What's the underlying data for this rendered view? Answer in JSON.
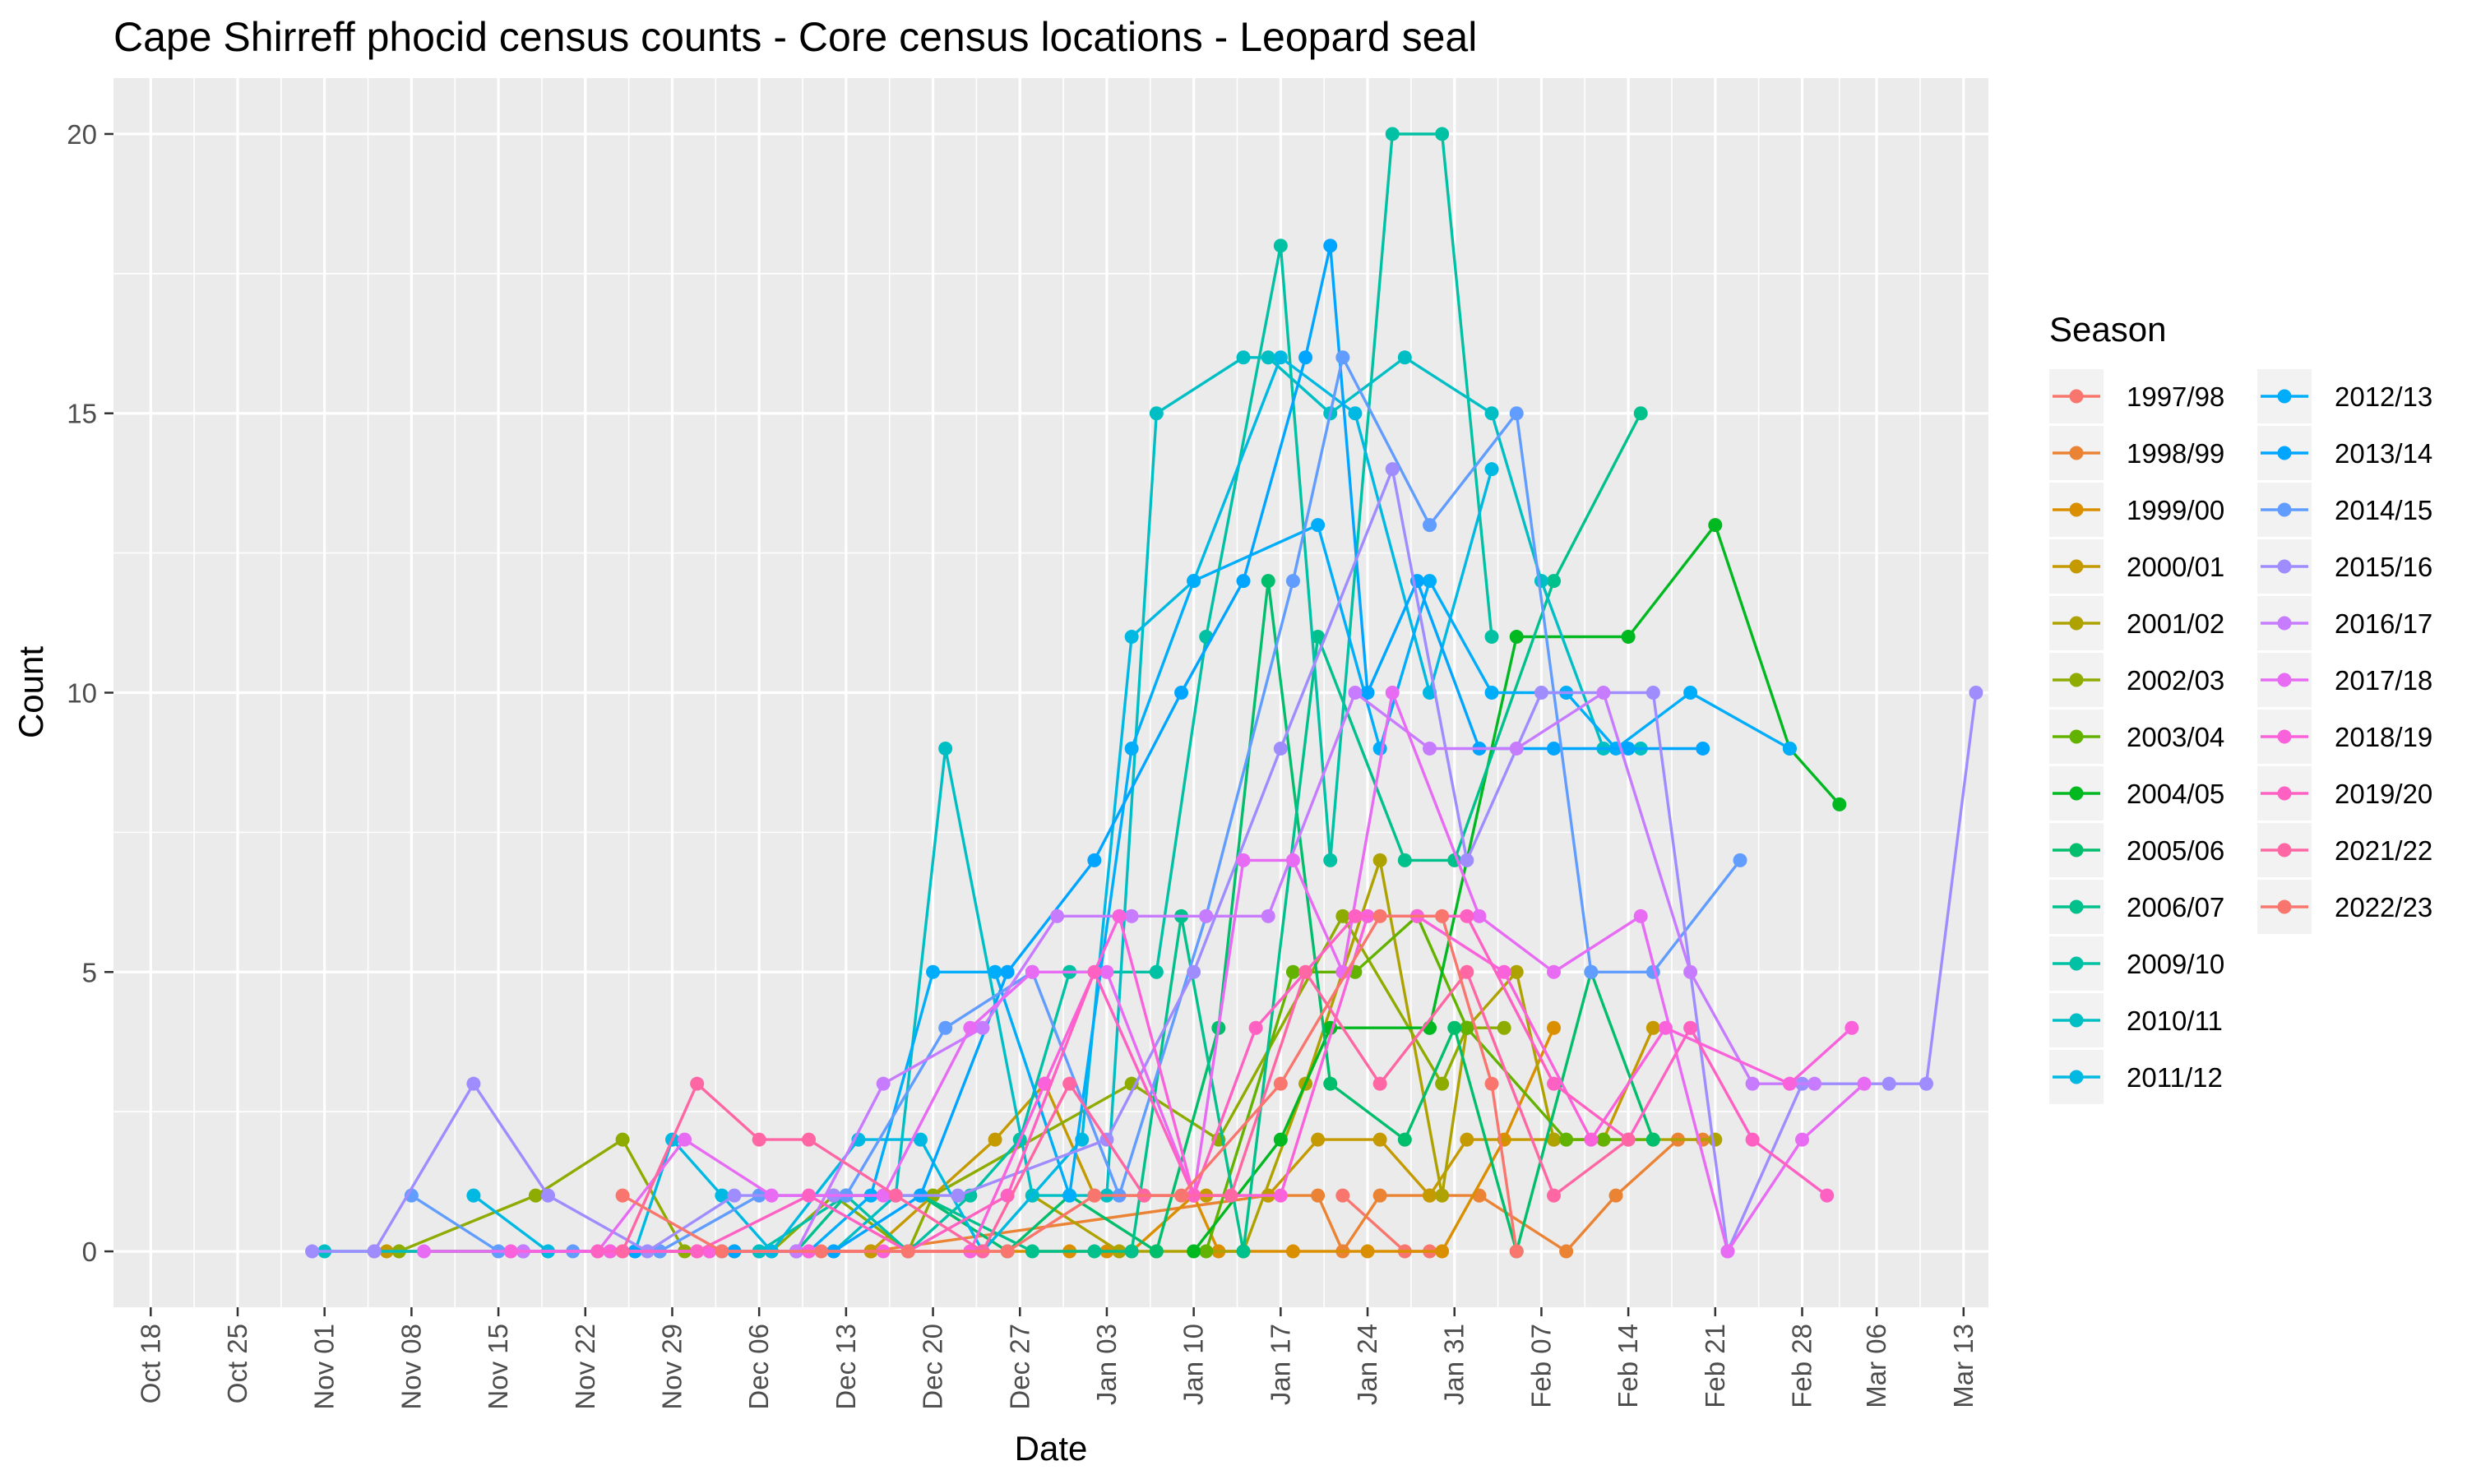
{
  "chart_data": {
    "type": "line",
    "title": "Cape Shirreff phocid census counts - Core census locations - Leopard seal",
    "xlabel": "Date",
    "ylabel": "Count",
    "legend_title": "Season",
    "legend_position": "right",
    "grid": true,
    "xlim_days": [
      -3,
      148
    ],
    "ylim": [
      -1,
      21
    ],
    "x_ticks": [
      {
        "label": "Oct 18",
        "day": 0
      },
      {
        "label": "Oct 25",
        "day": 7
      },
      {
        "label": "Nov 01",
        "day": 14
      },
      {
        "label": "Nov 08",
        "day": 21
      },
      {
        "label": "Nov 15",
        "day": 28
      },
      {
        "label": "Nov 22",
        "day": 35
      },
      {
        "label": "Nov 29",
        "day": 42
      },
      {
        "label": "Dec 06",
        "day": 49
      },
      {
        "label": "Dec 13",
        "day": 56
      },
      {
        "label": "Dec 20",
        "day": 63
      },
      {
        "label": "Dec 27",
        "day": 70
      },
      {
        "label": "Jan 03",
        "day": 77
      },
      {
        "label": "Jan 10",
        "day": 84
      },
      {
        "label": "Jan 17",
        "day": 91
      },
      {
        "label": "Jan 24",
        "day": 98
      },
      {
        "label": "Jan 31",
        "day": 105
      },
      {
        "label": "Feb 07",
        "day": 112
      },
      {
        "label": "Feb 14",
        "day": 119
      },
      {
        "label": "Feb 21",
        "day": 126
      },
      {
        "label": "Feb 28",
        "day": 133
      },
      {
        "label": "Mar 06",
        "day": 139
      },
      {
        "label": "Mar 13",
        "day": 146
      }
    ],
    "y_ticks": [
      0,
      5,
      10,
      15,
      20
    ],
    "series": [
      {
        "name": "1997/98",
        "color": "#F8766D",
        "x": [
          96,
          101,
          103
        ],
        "values": [
          1,
          0,
          0
        ]
      },
      {
        "name": "1998/99",
        "color": "#EB8335",
        "x": [
          44,
          58,
          90,
          94,
          96,
          99,
          103,
          107,
          114,
          118,
          123,
          125
        ],
        "values": [
          0,
          0,
          1,
          1,
          0,
          1,
          1,
          1,
          0,
          1,
          2,
          2
        ]
      },
      {
        "name": "1999/00",
        "color": "#DA8F00",
        "x": [
          18,
          58,
          74,
          77,
          79,
          84,
          86,
          92,
          98,
          104,
          109,
          113
        ],
        "values": [
          0,
          0,
          0,
          0,
          0,
          1,
          0,
          0,
          0,
          0,
          2,
          4
        ]
      },
      {
        "name": "2000/01",
        "color": "#C49A00",
        "x": [
          19,
          58,
          68,
          72,
          76,
          80,
          85,
          90,
          94,
          99,
          103,
          106,
          113,
          117,
          121
        ],
        "values": [
          0,
          0,
          2,
          3,
          1,
          1,
          1,
          1,
          2,
          2,
          1,
          2,
          2,
          2,
          4
        ]
      },
      {
        "name": "2001/02",
        "color": "#AEA200",
        "x": [
          71,
          78,
          81,
          88,
          93,
          99,
          104,
          106,
          110,
          113,
          126
        ],
        "values": [
          1,
          0,
          0,
          0,
          3,
          7,
          1,
          4,
          5,
          2,
          2
        ]
      },
      {
        "name": "2002/03",
        "color": "#8EAB00",
        "x": [
          20,
          31,
          38,
          43,
          47,
          50,
          55,
          61,
          63,
          79,
          86,
          96,
          104,
          106,
          109
        ],
        "values": [
          0,
          1,
          2,
          0,
          0,
          0,
          1,
          0,
          1,
          3,
          2,
          6,
          3,
          4,
          4
        ]
      },
      {
        "name": "2003/04",
        "color": "#64B200",
        "x": [
          85,
          92,
          97,
          102,
          106,
          114,
          117,
          121
        ],
        "values": [
          0,
          5,
          5,
          6,
          4,
          2,
          2,
          2
        ]
      },
      {
        "name": "2004/05",
        "color": "#00B81F",
        "x": [
          84,
          91,
          95,
          103,
          110,
          119,
          126,
          132,
          136
        ],
        "values": [
          0,
          2,
          4,
          4,
          11,
          11,
          13,
          9,
          8
        ]
      },
      {
        "name": "2005/06",
        "color": "#00BE6C",
        "x": [
          62,
          69,
          74,
          81,
          86,
          90,
          95,
          101,
          105,
          110,
          116,
          121
        ],
        "values": [
          1,
          0,
          1,
          0,
          4,
          12,
          3,
          2,
          4,
          0,
          5,
          2
        ]
      },
      {
        "name": "2006/07",
        "color": "#00C08B",
        "x": [
          52,
          56,
          62,
          71,
          76,
          79,
          83,
          88,
          94,
          101,
          105,
          113,
          120
        ],
        "values": [
          0,
          1,
          1,
          0,
          0,
          0,
          6,
          0,
          11,
          7,
          7,
          12,
          15
        ]
      },
      {
        "name": "2009/10",
        "color": "#00C1A3",
        "x": [
          49,
          56,
          61,
          66,
          70,
          74,
          81,
          85,
          91,
          95,
          100,
          104,
          108
        ],
        "values": [
          0,
          1,
          0,
          1,
          2,
          5,
          5,
          11,
          18,
          7,
          20,
          20,
          11
        ]
      },
      {
        "name": "2010/11",
        "color": "#00BFC4",
        "x": [
          14,
          49,
          52,
          55,
          60,
          64,
          71,
          77,
          81,
          88,
          90,
          95,
          101,
          108,
          112,
          117,
          120
        ],
        "values": [
          0,
          0,
          0,
          0,
          1,
          9,
          1,
          1,
          15,
          16,
          16,
          15,
          16,
          15,
          12,
          9,
          9
        ]
      },
      {
        "name": "2011/12",
        "color": "#00B9E3",
        "x": [
          26,
          32,
          39,
          42,
          46,
          50,
          57,
          62,
          67,
          75,
          79,
          84,
          91,
          97,
          103,
          108
        ],
        "values": [
          1,
          0,
          0,
          2,
          1,
          0,
          2,
          2,
          0,
          2,
          11,
          12,
          16,
          15,
          10,
          14
        ]
      },
      {
        "name": "2012/13",
        "color": "#00ADFA",
        "x": [
          30,
          37,
          41,
          46,
          53,
          58,
          63,
          68,
          74,
          79,
          84,
          94,
          99,
          103,
          108,
          114,
          118,
          124,
          132
        ],
        "values": [
          0,
          0,
          0,
          0,
          0,
          1,
          5,
          5,
          1,
          9,
          12,
          13,
          9,
          12,
          10,
          10,
          9,
          10,
          9
        ]
      },
      {
        "name": "2013/14",
        "color": "#00A5FF",
        "x": [
          30,
          39,
          47,
          55,
          62,
          69,
          76,
          83,
          88,
          93,
          95,
          98,
          102,
          107,
          113,
          119,
          125
        ],
        "values": [
          0,
          0,
          0,
          0,
          1,
          5,
          7,
          10,
          12,
          16,
          18,
          10,
          12,
          9,
          9,
          9,
          9
        ]
      },
      {
        "name": "2014/15",
        "color": "#619CFF",
        "x": [
          21,
          28,
          34,
          41,
          49,
          56,
          64,
          71,
          78,
          85,
          92,
          96,
          103,
          110,
          116,
          121,
          128
        ],
        "values": [
          1,
          0,
          0,
          0,
          1,
          1,
          4,
          5,
          1,
          6,
          12,
          16,
          13,
          15,
          5,
          5,
          7
        ]
      },
      {
        "name": "2015/16",
        "color": "#9F8CFF",
        "x": [
          13,
          18,
          26,
          32,
          40,
          47,
          55,
          65,
          77,
          84,
          91,
          100,
          106,
          112,
          121,
          127,
          133,
          140,
          143,
          147
        ],
        "values": [
          0,
          0,
          3,
          1,
          0,
          1,
          1,
          1,
          2,
          5,
          9,
          14,
          7,
          10,
          10,
          0,
          3,
          3,
          3,
          10
        ]
      },
      {
        "name": "2016/17",
        "color": "#C77CFF",
        "x": [
          30,
          38,
          45,
          52,
          59,
          67,
          73,
          79,
          85,
          90,
          97,
          103,
          110,
          117,
          124,
          129,
          134
        ],
        "values": [
          0,
          0,
          0,
          0,
          3,
          4,
          6,
          6,
          6,
          6,
          10,
          9,
          9,
          10,
          5,
          3,
          3
        ]
      },
      {
        "name": "2017/18",
        "color": "#E76BF3",
        "x": [
          22,
          29,
          36,
          43,
          50,
          59,
          66,
          71,
          77,
          84,
          88,
          92,
          96,
          100,
          107,
          113,
          120,
          127,
          133,
          138
        ],
        "values": [
          0,
          0,
          0,
          2,
          1,
          1,
          4,
          5,
          5,
          1,
          7,
          7,
          5,
          10,
          6,
          5,
          6,
          0,
          2,
          3
        ]
      },
      {
        "name": "2018/19",
        "color": "#FA62DB",
        "x": [
          29,
          37,
          45,
          53,
          59,
          66,
          72,
          78,
          84,
          91,
          98,
          102,
          109,
          116,
          122,
          132,
          137
        ],
        "values": [
          0,
          0,
          0,
          0,
          0,
          0,
          3,
          6,
          1,
          1,
          6,
          6,
          5,
          2,
          4,
          3,
          4
        ]
      },
      {
        "name": "2019/20",
        "color": "#FF61C3",
        "x": [
          36,
          44,
          53,
          61,
          69,
          76,
          84,
          89,
          97,
          106,
          113,
          119,
          124,
          129,
          135
        ],
        "values": [
          0,
          0,
          1,
          0,
          1,
          5,
          1,
          4,
          6,
          6,
          3,
          2,
          4,
          2,
          1
        ]
      },
      {
        "name": "2021/22",
        "color": "#FF67A4",
        "x": [
          38,
          44,
          49,
          53,
          60,
          67,
          74,
          80,
          87,
          93,
          99,
          106,
          113,
          119
        ],
        "values": [
          0,
          3,
          2,
          2,
          1,
          0,
          3,
          1,
          1,
          5,
          3,
          5,
          1,
          2
        ]
      },
      {
        "name": "2022/23",
        "color": "#F8766D",
        "x": [
          38,
          46,
          54,
          61,
          69,
          76,
          83,
          91,
          99,
          104,
          108,
          110
        ],
        "values": [
          1,
          0,
          0,
          0,
          0,
          1,
          1,
          3,
          6,
          6,
          3,
          0
        ]
      }
    ]
  }
}
